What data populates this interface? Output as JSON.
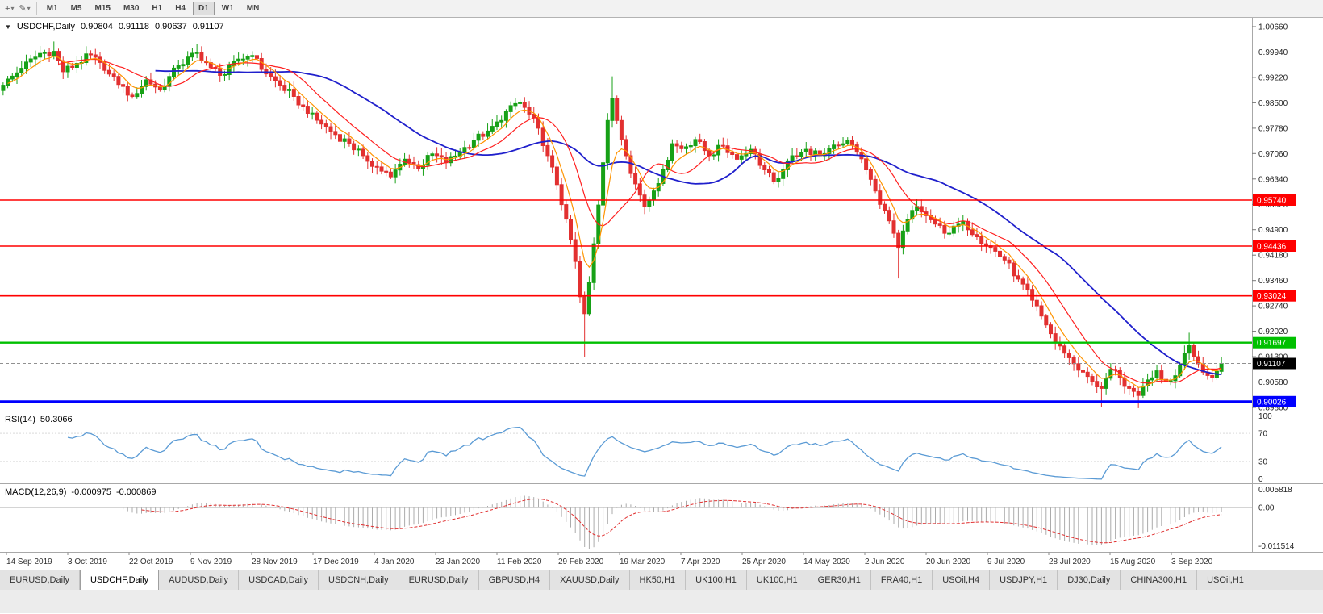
{
  "toolbar": {
    "icons": [
      {
        "name": "crosshair-tool",
        "glyph": "+",
        "caret": "▾"
      },
      {
        "name": "draw-tool",
        "glyph": "✎",
        "caret": "▾"
      }
    ],
    "timeframes": [
      {
        "label": "M1",
        "active": false
      },
      {
        "label": "M5",
        "active": false
      },
      {
        "label": "M15",
        "active": false
      },
      {
        "label": "M30",
        "active": false
      },
      {
        "label": "H1",
        "active": false
      },
      {
        "label": "H4",
        "active": false
      },
      {
        "label": "D1",
        "active": true
      },
      {
        "label": "W1",
        "active": false
      },
      {
        "label": "MN",
        "active": false
      }
    ]
  },
  "chart": {
    "collapse_icon": "▼",
    "symbol_period": "USDCHF,Daily",
    "open": "0.90804",
    "high": "0.91118",
    "low": "0.90637",
    "close": "0.91107"
  },
  "indicators": {
    "rsi": {
      "name": "RSI(14)",
      "value": "50.3066"
    },
    "macd": {
      "name": "MACD(12,26,9)",
      "value1": "-0.000975",
      "value2": "-0.000869"
    }
  },
  "tabs": [
    {
      "label": "EURUSD,Daily",
      "active": false
    },
    {
      "label": "USDCHF,Daily",
      "active": true
    },
    {
      "label": "AUDUSD,Daily",
      "active": false
    },
    {
      "label": "USDCAD,Daily",
      "active": false
    },
    {
      "label": "USDCNH,Daily",
      "active": false
    },
    {
      "label": "EURUSD,Daily",
      "active": false
    },
    {
      "label": "GBPUSD,H4",
      "active": false
    },
    {
      "label": "XAUUSD,Daily",
      "active": false
    },
    {
      "label": "HK50,H1",
      "active": false
    },
    {
      "label": "UK100,H1",
      "active": false
    },
    {
      "label": "UK100,H1",
      "active": false
    },
    {
      "label": "GER30,H1",
      "active": false
    },
    {
      "label": "FRA40,H1",
      "active": false
    },
    {
      "label": "USOil,H4",
      "active": false
    },
    {
      "label": "USDJPY,H1",
      "active": false
    },
    {
      "label": "DJ30,Daily",
      "active": false
    },
    {
      "label": "CHINA300,H1",
      "active": false
    },
    {
      "label": "USOil,H1",
      "active": false
    }
  ],
  "chart_data": {
    "type": "candlestick",
    "symbol": "USDCHF",
    "timeframe": "Daily",
    "title": "USDCHF,Daily",
    "last_close": 0.91107,
    "price_axis": {
      "top": 1.009117,
      "bottom": 0.897917
    },
    "y_ticks": [
      "1.00660",
      "0.99940",
      "0.99220",
      "0.98500",
      "0.97780",
      "0.97060",
      "0.96340",
      "0.95620",
      "0.94900",
      "0.94180",
      "0.93460",
      "0.92740",
      "0.92020",
      "0.91300",
      "0.90580",
      "0.89860"
    ],
    "x_labels": [
      "14 Sep 2019",
      "3 Oct 2019",
      "22 Oct 2019",
      "9 Nov 2019",
      "28 Nov 2019",
      "17 Dec 2019",
      "4 Jan 2020",
      "23 Jan 2020",
      "11 Feb 2020",
      "29 Feb 2020",
      "19 Mar 2020",
      "7 Apr 2020",
      "25 Apr 2020",
      "14 May 2020",
      "2 Jun 2020",
      "20 Jun 2020",
      "9 Jul 2020",
      "28 Jul 2020",
      "15 Aug 2020",
      "3 Sep 2020"
    ],
    "num_candles": 265,
    "close_anchors": [
      [
        0,
        0.99
      ],
      [
        4,
        0.9948
      ],
      [
        8,
        0.999
      ],
      [
        11,
        0.9996
      ],
      [
        13,
        0.9938
      ],
      [
        16,
        0.9962
      ],
      [
        19,
        0.9986
      ],
      [
        22,
        0.9942
      ],
      [
        25,
        0.9902
      ],
      [
        28,
        0.9868
      ],
      [
        31,
        0.9915
      ],
      [
        34,
        0.9888
      ],
      [
        38,
        0.9955
      ],
      [
        42,
        0.9992
      ],
      [
        45,
        0.995
      ],
      [
        48,
        0.993
      ],
      [
        51,
        0.9974
      ],
      [
        54,
        0.9984
      ],
      [
        57,
        0.9932
      ],
      [
        60,
        0.99
      ],
      [
        63,
        0.9868
      ],
      [
        66,
        0.982
      ],
      [
        69,
        0.979
      ],
      [
        72,
        0.976
      ],
      [
        75,
        0.9734
      ],
      [
        78,
        0.97
      ],
      [
        81,
        0.9668
      ],
      [
        84,
        0.964
      ],
      [
        87,
        0.969
      ],
      [
        90,
        0.9664
      ],
      [
        93,
        0.9705
      ],
      [
        96,
        0.968
      ],
      [
        99,
        0.971
      ],
      [
        102,
        0.9744
      ],
      [
        105,
        0.977
      ],
      [
        108,
        0.98
      ],
      [
        110,
        0.9842
      ],
      [
        112,
        0.985
      ],
      [
        114,
        0.9818
      ],
      [
        116,
        0.9778
      ],
      [
        118,
        0.97
      ],
      [
        120,
        0.9618
      ],
      [
        122,
        0.952
      ],
      [
        124,
        0.94
      ],
      [
        125,
        0.93
      ],
      [
        126,
        0.9252
      ],
      [
        127,
        0.934
      ],
      [
        128,
        0.945
      ],
      [
        129,
        0.956
      ],
      [
        130,
        0.968
      ],
      [
        131,
        0.98
      ],
      [
        132,
        0.9862
      ],
      [
        133,
        0.98
      ],
      [
        134,
        0.9746
      ],
      [
        135,
        0.97
      ],
      [
        137,
        0.962
      ],
      [
        139,
        0.9556
      ],
      [
        141,
        0.96
      ],
      [
        143,
        0.966
      ],
      [
        145,
        0.9734
      ],
      [
        147,
        0.972
      ],
      [
        150,
        0.9746
      ],
      [
        153,
        0.97
      ],
      [
        156,
        0.9728
      ],
      [
        159,
        0.969
      ],
      [
        162,
        0.9718
      ],
      [
        165,
        0.966
      ],
      [
        167,
        0.9626
      ],
      [
        169,
        0.966
      ],
      [
        171,
        0.97
      ],
      [
        174,
        0.9718
      ],
      [
        177,
        0.97
      ],
      [
        180,
        0.973
      ],
      [
        183,
        0.9744
      ],
      [
        185,
        0.971
      ],
      [
        187,
        0.966
      ],
      [
        189,
        0.96
      ],
      [
        191,
        0.9545
      ],
      [
        193,
        0.948
      ],
      [
        194,
        0.944
      ],
      [
        196,
        0.952
      ],
      [
        198,
        0.9556
      ],
      [
        200,
        0.953
      ],
      [
        202,
        0.9506
      ],
      [
        205,
        0.948
      ],
      [
        208,
        0.9514
      ],
      [
        211,
        0.947
      ],
      [
        214,
        0.944
      ],
      [
        217,
        0.9404
      ],
      [
        220,
        0.935
      ],
      [
        223,
        0.929
      ],
      [
        226,
        0.922
      ],
      [
        228,
        0.917
      ],
      [
        230,
        0.914
      ],
      [
        232,
        0.911
      ],
      [
        234,
        0.9086
      ],
      [
        236,
        0.906
      ],
      [
        238,
        0.904
      ],
      [
        240,
        0.9094
      ],
      [
        242,
        0.907
      ],
      [
        244,
        0.904
      ],
      [
        246,
        0.902
      ],
      [
        248,
        0.9064
      ],
      [
        250,
        0.909
      ],
      [
        252,
        0.906
      ],
      [
        254,
        0.9076
      ],
      [
        256,
        0.914
      ],
      [
        257,
        0.9162
      ],
      [
        258,
        0.913
      ],
      [
        260,
        0.9086
      ],
      [
        262,
        0.907
      ],
      [
        264,
        0.91107
      ]
    ],
    "spikes": [
      {
        "i": 11,
        "high": 1.0024
      },
      {
        "i": 42,
        "high": 1.0018
      },
      {
        "i": 126,
        "low": 0.9128
      },
      {
        "i": 132,
        "high": 0.9925
      },
      {
        "i": 194,
        "low": 0.9352
      },
      {
        "i": 238,
        "low": 0.8986
      },
      {
        "i": 246,
        "low": 0.8984
      },
      {
        "i": 257,
        "high": 0.9198
      }
    ],
    "hlines": [
      {
        "price": 0.9574,
        "label": "0.95740",
        "color": "#FF0000",
        "width": 1.6
      },
      {
        "price": 0.94436,
        "label": "0.94436",
        "color": "#FF0000",
        "width": 1.6
      },
      {
        "price": 0.93024,
        "label": "0.93024",
        "color": "#FF0000",
        "width": 1.6
      },
      {
        "price": 0.91697,
        "label": "0.91697",
        "color": "#00C000",
        "width": 2.4
      },
      {
        "price": 0.90026,
        "label": "0.90026",
        "color": "#0000FF",
        "width": 3
      }
    ],
    "current_price_label": {
      "price": 0.91107,
      "label": "0.91107",
      "bg": "#000000"
    },
    "moving_averages": [
      {
        "name": "MA fast",
        "period": 6,
        "color": "#FF9400"
      },
      {
        "name": "MA mid",
        "period": 13,
        "color": "#FF2020"
      },
      {
        "name": "MA slow",
        "period": 34,
        "color": "#2020CC"
      }
    ],
    "rsi_axis": [
      "100",
      "70",
      "30",
      "0"
    ],
    "rsi_levels": [
      70,
      30
    ],
    "macd_axis": {
      "top": "0.005818",
      "zero": "0.00",
      "bottom": "-0.011514"
    },
    "colors": {
      "up": "#17A117",
      "down": "#E23030",
      "rsi": "#5B9BD5",
      "macd_hist": "#ABABAB",
      "macd_signal": "#E03030",
      "separator": "#A8A8A8",
      "axis_text": "#222222"
    }
  }
}
